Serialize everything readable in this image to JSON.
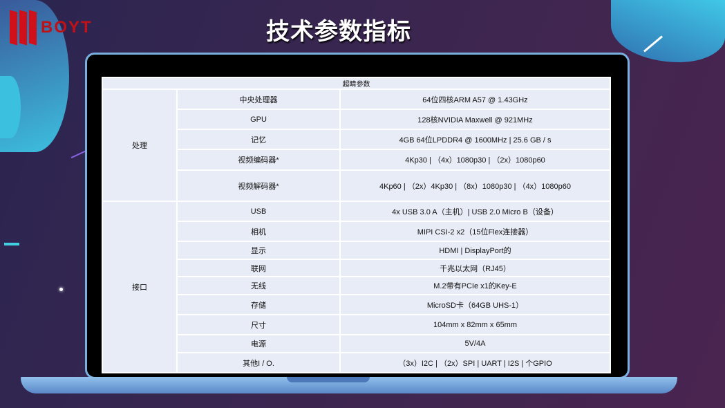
{
  "brand": {
    "logo_text": "BOYT",
    "logo_color": "#d0101a"
  },
  "title": "技术参数指标",
  "table": {
    "header": "超睛参数",
    "groups": [
      {
        "name": "处理",
        "rows": [
          {
            "label": "中央处理器",
            "value": "64位四核ARM A57 @ 1.43GHz"
          },
          {
            "label": "GPU",
            "value": "128核NVIDIA Maxwell @ 921MHz"
          },
          {
            "label": "记忆",
            "value": "4GB 64位LPDDR4 @ 1600MHz | 25.6 GB / s"
          },
          {
            "label": "视频编码器*",
            "value": "4Kp30 | （4x）1080p30 | （2x）1080p60"
          },
          {
            "label": "视频解码器*",
            "value": "4Kp60 | （2x）4Kp30 | （8x）1080p30 | （4x）1080p60"
          }
        ]
      },
      {
        "name": "接口",
        "rows": [
          {
            "label": "USB",
            "value": "4x USB 3.0 A（主机）| USB 2.0 Micro B（设备）"
          },
          {
            "label": "相机",
            "value": "MIPI CSI-2 x2（15位Flex连接器）"
          },
          {
            "label": "显示",
            "value": "HDMI | DisplayPort的"
          },
          {
            "label": "联网",
            "value": "千兆以太网（RJ45）"
          },
          {
            "label": "无线",
            "value": "M.2带有PCIe x1的Key-E"
          },
          {
            "label": "存储",
            "value": "MicroSD卡（64GB UHS-1）"
          },
          {
            "label": "尺寸",
            "value": "104mm x 82mm x 65mm"
          },
          {
            "label": "电源",
            "value": "5V/4A"
          },
          {
            "label": "其他I / O.",
            "value": "（3x）I2C | （2x）SPI | UART | I2S | 个GPIO"
          }
        ]
      }
    ]
  }
}
